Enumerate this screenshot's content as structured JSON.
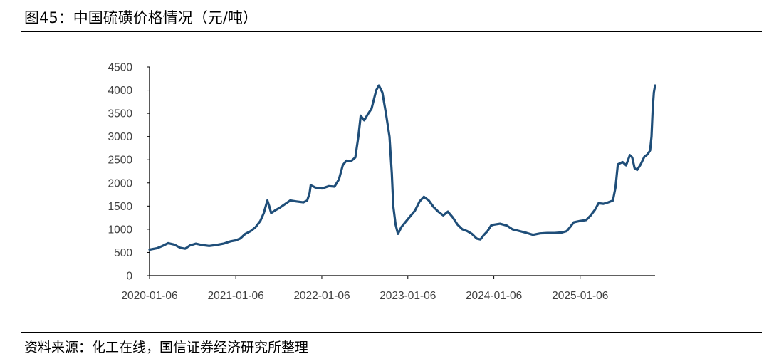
{
  "title": "图45：中国硫磺价格情况（元/吨）",
  "source": "资料来源：化工在线，国信证券经济研究所整理",
  "colors": {
    "line": "#1f4e79",
    "axis": "#000000",
    "text": "#404040"
  },
  "chart_data": {
    "type": "line",
    "title": "图45：中国硫磺价格情况（元/吨）",
    "xlabel": "",
    "ylabel": "",
    "ylim": [
      0,
      4500
    ],
    "yticks": [
      0,
      500,
      1000,
      1500,
      2000,
      2500,
      3000,
      3500,
      4000,
      4500
    ],
    "xlim": [
      "2020-01-06",
      "2025-11-20"
    ],
    "xticks": [
      "2020-01-06",
      "2021-01-06",
      "2022-01-06",
      "2023-01-06",
      "2024-01-06",
      "2025-01-06"
    ],
    "grid": false,
    "legend": "none",
    "series": [
      {
        "color": "#1f4e79",
        "points": [
          [
            "2020-01-06",
            560
          ],
          [
            "2020-02-06",
            590
          ],
          [
            "2020-03-01",
            640
          ],
          [
            "2020-03-25",
            700
          ],
          [
            "2020-04-20",
            670
          ],
          [
            "2020-05-15",
            600
          ],
          [
            "2020-06-05",
            580
          ],
          [
            "2020-06-25",
            650
          ],
          [
            "2020-07-20",
            690
          ],
          [
            "2020-08-15",
            660
          ],
          [
            "2020-09-15",
            640
          ],
          [
            "2020-10-15",
            660
          ],
          [
            "2020-11-15",
            690
          ],
          [
            "2020-12-15",
            740
          ],
          [
            "2021-01-06",
            760
          ],
          [
            "2021-01-25",
            800
          ],
          [
            "2021-02-15",
            900
          ],
          [
            "2021-03-10",
            960
          ],
          [
            "2021-03-30",
            1040
          ],
          [
            "2021-04-20",
            1180
          ],
          [
            "2021-05-05",
            1350
          ],
          [
            "2021-05-20",
            1620
          ],
          [
            "2021-05-28",
            1500
          ],
          [
            "2021-06-05",
            1350
          ],
          [
            "2021-06-20",
            1400
          ],
          [
            "2021-07-10",
            1460
          ],
          [
            "2021-08-05",
            1550
          ],
          [
            "2021-08-25",
            1620
          ],
          [
            "2021-09-20",
            1600
          ],
          [
            "2021-10-20",
            1580
          ],
          [
            "2021-11-05",
            1620
          ],
          [
            "2021-11-15",
            1780
          ],
          [
            "2021-11-20",
            1950
          ],
          [
            "2021-12-10",
            1900
          ],
          [
            "2022-01-06",
            1880
          ],
          [
            "2022-02-05",
            1930
          ],
          [
            "2022-03-01",
            1920
          ],
          [
            "2022-03-20",
            2080
          ],
          [
            "2022-04-05",
            2380
          ],
          [
            "2022-04-20",
            2480
          ],
          [
            "2022-05-10",
            2470
          ],
          [
            "2022-05-28",
            2550
          ],
          [
            "2022-06-10",
            3000
          ],
          [
            "2022-06-20",
            3450
          ],
          [
            "2022-07-05",
            3350
          ],
          [
            "2022-07-20",
            3480
          ],
          [
            "2022-08-05",
            3600
          ],
          [
            "2022-08-25",
            4000
          ],
          [
            "2022-09-05",
            4100
          ],
          [
            "2022-09-20",
            3950
          ],
          [
            "2022-10-05",
            3500
          ],
          [
            "2022-10-20",
            3000
          ],
          [
            "2022-10-30",
            2200
          ],
          [
            "2022-11-05",
            1500
          ],
          [
            "2022-11-15",
            1100
          ],
          [
            "2022-11-25",
            900
          ],
          [
            "2022-12-10",
            1050
          ],
          [
            "2023-01-06",
            1220
          ],
          [
            "2023-02-05",
            1400
          ],
          [
            "2023-02-25",
            1600
          ],
          [
            "2023-03-15",
            1700
          ],
          [
            "2023-04-05",
            1620
          ],
          [
            "2023-04-25",
            1480
          ],
          [
            "2023-05-15",
            1380
          ],
          [
            "2023-06-05",
            1300
          ],
          [
            "2023-06-25",
            1380
          ],
          [
            "2023-07-15",
            1260
          ],
          [
            "2023-08-05",
            1100
          ],
          [
            "2023-08-25",
            1000
          ],
          [
            "2023-09-15",
            960
          ],
          [
            "2023-10-05",
            900
          ],
          [
            "2023-10-25",
            800
          ],
          [
            "2023-11-10",
            780
          ],
          [
            "2023-11-25",
            880
          ],
          [
            "2023-12-10",
            960
          ],
          [
            "2023-12-25",
            1080
          ],
          [
            "2024-01-06",
            1100
          ],
          [
            "2024-02-01",
            1120
          ],
          [
            "2024-03-01",
            1080
          ],
          [
            "2024-03-25",
            1000
          ],
          [
            "2024-04-25",
            960
          ],
          [
            "2024-05-25",
            920
          ],
          [
            "2024-06-20",
            880
          ],
          [
            "2024-07-20",
            910
          ],
          [
            "2024-08-20",
            920
          ],
          [
            "2024-09-20",
            920
          ],
          [
            "2024-10-20",
            930
          ],
          [
            "2024-11-10",
            960
          ],
          [
            "2024-11-25",
            1050
          ],
          [
            "2024-12-10",
            1150
          ],
          [
            "2025-01-06",
            1180
          ],
          [
            "2025-02-01",
            1200
          ],
          [
            "2025-02-20",
            1300
          ],
          [
            "2025-03-10",
            1420
          ],
          [
            "2025-03-25",
            1560
          ],
          [
            "2025-04-15",
            1550
          ],
          [
            "2025-05-05",
            1580
          ],
          [
            "2025-05-25",
            1620
          ],
          [
            "2025-06-05",
            1900
          ],
          [
            "2025-06-15",
            2400
          ],
          [
            "2025-07-05",
            2450
          ],
          [
            "2025-07-20",
            2380
          ],
          [
            "2025-08-05",
            2600
          ],
          [
            "2025-08-15",
            2550
          ],
          [
            "2025-08-25",
            2320
          ],
          [
            "2025-09-05",
            2280
          ],
          [
            "2025-09-20",
            2400
          ],
          [
            "2025-10-05",
            2560
          ],
          [
            "2025-10-20",
            2620
          ],
          [
            "2025-10-30",
            2700
          ],
          [
            "2025-11-05",
            3000
          ],
          [
            "2025-11-10",
            3600
          ],
          [
            "2025-11-15",
            3950
          ],
          [
            "2025-11-20",
            4100
          ]
        ]
      }
    ]
  }
}
